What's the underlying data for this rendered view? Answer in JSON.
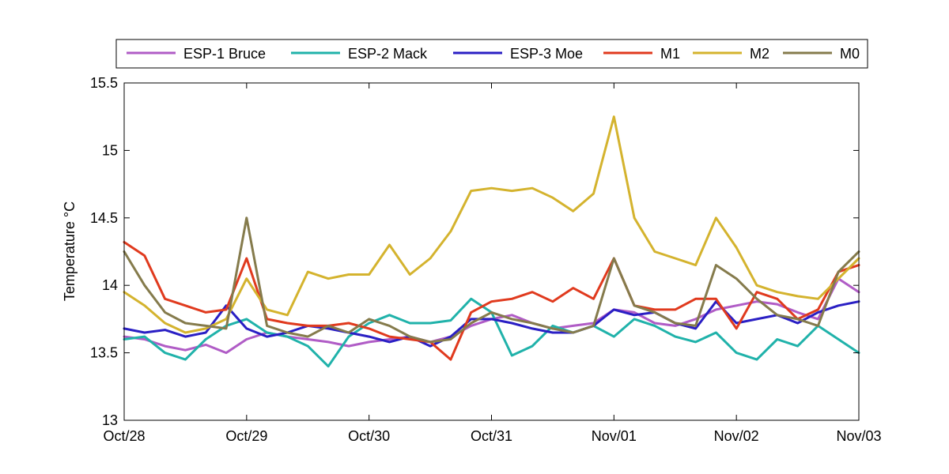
{
  "chart_data": {
    "type": "line",
    "title": "",
    "xlabel": "",
    "ylabel": "Temperature °C",
    "xlim": [
      "2014-10-28",
      "2014-11-03"
    ],
    "ylim": [
      13,
      15.5
    ],
    "x_ticks": [
      "Oct/28",
      "Oct/29",
      "Oct/30",
      "Oct/31",
      "Nov/01",
      "Nov/02",
      "Nov/03"
    ],
    "y_ticks": [
      "13",
      "13.5",
      "14",
      "14.5",
      "15",
      "15.5"
    ],
    "grid": false,
    "legend_position": "top",
    "series": [
      {
        "name": "ESP-1 Bruce",
        "color": "#b05cc6",
        "x": [
          "2014-10-28 00:00",
          "2014-10-28 04:00",
          "2014-10-28 08:00",
          "2014-10-28 12:00",
          "2014-10-28 16:00",
          "2014-10-28 20:00",
          "2014-10-29 00:00",
          "2014-10-29 04:00",
          "2014-10-29 08:00",
          "2014-10-29 12:00",
          "2014-10-29 16:00",
          "2014-10-29 20:00",
          "2014-10-30 00:00",
          "2014-10-30 04:00",
          "2014-10-30 08:00",
          "2014-10-30 12:00",
          "2014-10-30 16:00",
          "2014-10-30 20:00",
          "2014-10-31 00:00",
          "2014-10-31 04:00",
          "2014-10-31 08:00",
          "2014-10-31 12:00",
          "2014-10-31 16:00",
          "2014-10-31 20:00",
          "2014-11-01 00:00",
          "2014-11-01 04:00",
          "2014-11-01 08:00",
          "2014-11-01 12:00",
          "2014-11-01 16:00",
          "2014-11-01 20:00",
          "2014-11-02 00:00",
          "2014-11-02 04:00",
          "2014-11-02 08:00",
          "2014-11-02 12:00",
          "2014-11-02 16:00",
          "2014-11-02 20:00",
          "2014-11-03 00:00"
        ],
        "y": [
          13.62,
          13.6,
          13.55,
          13.52,
          13.56,
          13.5,
          13.6,
          13.65,
          13.62,
          13.6,
          13.58,
          13.55,
          13.58,
          13.6,
          13.62,
          13.58,
          13.62,
          13.7,
          13.75,
          13.78,
          13.72,
          13.68,
          13.7,
          13.72,
          13.82,
          13.8,
          13.72,
          13.7,
          13.75,
          13.82,
          13.85,
          13.88,
          13.86,
          13.8,
          13.75,
          14.05,
          13.95
        ]
      },
      {
        "name": "ESP-2 Mack",
        "color": "#20b2aa",
        "x": [
          "2014-10-28 00:00",
          "2014-10-28 04:00",
          "2014-10-28 08:00",
          "2014-10-28 12:00",
          "2014-10-28 16:00",
          "2014-10-28 20:00",
          "2014-10-29 00:00",
          "2014-10-29 04:00",
          "2014-10-29 08:00",
          "2014-10-29 12:00",
          "2014-10-29 16:00",
          "2014-10-29 20:00",
          "2014-10-30 00:00",
          "2014-10-30 04:00",
          "2014-10-30 08:00",
          "2014-10-30 12:00",
          "2014-10-30 16:00",
          "2014-10-30 20:00",
          "2014-10-31 00:00",
          "2014-10-31 04:00",
          "2014-10-31 08:00",
          "2014-10-31 12:00",
          "2014-10-31 16:00",
          "2014-10-31 20:00",
          "2014-11-01 00:00",
          "2014-11-01 04:00",
          "2014-11-01 08:00",
          "2014-11-01 12:00",
          "2014-11-01 16:00",
          "2014-11-01 20:00",
          "2014-11-02 00:00",
          "2014-11-02 04:00",
          "2014-11-02 08:00",
          "2014-11-02 12:00",
          "2014-11-02 16:00",
          "2014-11-02 20:00",
          "2014-11-03 00:00"
        ],
        "y": [
          13.6,
          13.62,
          13.5,
          13.45,
          13.6,
          13.7,
          13.75,
          13.65,
          13.62,
          13.55,
          13.4,
          13.62,
          13.72,
          13.78,
          13.72,
          13.72,
          13.74,
          13.9,
          13.8,
          13.48,
          13.55,
          13.7,
          13.65,
          13.7,
          13.62,
          13.75,
          13.7,
          13.62,
          13.58,
          13.65,
          13.5,
          13.45,
          13.6,
          13.55,
          13.7,
          13.6,
          13.5
        ]
      },
      {
        "name": "ESP-3 Moe",
        "color": "#2a1fc4",
        "x": [
          "2014-10-28 00:00",
          "2014-10-28 04:00",
          "2014-10-28 08:00",
          "2014-10-28 12:00",
          "2014-10-28 16:00",
          "2014-10-28 20:00",
          "2014-10-29 00:00",
          "2014-10-29 04:00",
          "2014-10-29 08:00",
          "2014-10-29 12:00",
          "2014-10-29 16:00",
          "2014-10-29 20:00",
          "2014-10-30 00:00",
          "2014-10-30 04:00",
          "2014-10-30 08:00",
          "2014-10-30 12:00",
          "2014-10-30 16:00",
          "2014-10-30 20:00",
          "2014-10-31 00:00",
          "2014-10-31 04:00",
          "2014-10-31 08:00",
          "2014-10-31 12:00",
          "2014-10-31 16:00",
          "2014-10-31 20:00",
          "2014-11-01 00:00",
          "2014-11-01 04:00",
          "2014-11-01 08:00",
          "2014-11-01 12:00",
          "2014-11-01 16:00",
          "2014-11-01 20:00",
          "2014-11-02 00:00",
          "2014-11-02 04:00",
          "2014-11-02 08:00",
          "2014-11-02 12:00",
          "2014-11-02 16:00",
          "2014-11-02 20:00",
          "2014-11-03 00:00"
        ],
        "y": [
          13.68,
          13.65,
          13.67,
          13.62,
          13.65,
          13.85,
          13.68,
          13.62,
          13.65,
          13.7,
          13.68,
          13.65,
          13.62,
          13.58,
          13.62,
          13.55,
          13.62,
          13.75,
          13.75,
          13.72,
          13.68,
          13.65,
          13.65,
          13.7,
          13.82,
          13.78,
          13.8,
          13.72,
          13.68,
          13.88,
          13.72,
          13.75,
          13.78,
          13.72,
          13.8,
          13.85,
          13.88
        ]
      },
      {
        "name": "M1",
        "color": "#e03a1e",
        "x": [
          "2014-10-28 00:00",
          "2014-10-28 04:00",
          "2014-10-28 08:00",
          "2014-10-28 12:00",
          "2014-10-28 16:00",
          "2014-10-28 20:00",
          "2014-10-29 00:00",
          "2014-10-29 04:00",
          "2014-10-29 08:00",
          "2014-10-29 12:00",
          "2014-10-29 16:00",
          "2014-10-29 20:00",
          "2014-10-30 00:00",
          "2014-10-30 04:00",
          "2014-10-30 08:00",
          "2014-10-30 12:00",
          "2014-10-30 16:00",
          "2014-10-30 20:00",
          "2014-10-31 00:00",
          "2014-10-31 04:00",
          "2014-10-31 08:00",
          "2014-10-31 12:00",
          "2014-10-31 16:00",
          "2014-10-31 20:00",
          "2014-11-01 00:00",
          "2014-11-01 04:00",
          "2014-11-01 08:00",
          "2014-11-01 12:00",
          "2014-11-01 16:00",
          "2014-11-01 20:00",
          "2014-11-02 00:00",
          "2014-11-02 04:00",
          "2014-11-02 08:00",
          "2014-11-02 12:00",
          "2014-11-02 16:00",
          "2014-11-02 20:00",
          "2014-11-03 00:00"
        ],
        "y": [
          14.32,
          14.22,
          13.9,
          13.85,
          13.8,
          13.82,
          14.2,
          13.75,
          13.72,
          13.7,
          13.7,
          13.72,
          13.68,
          13.62,
          13.6,
          13.58,
          13.45,
          13.8,
          13.88,
          13.9,
          13.95,
          13.88,
          13.98,
          13.9,
          14.2,
          13.85,
          13.82,
          13.82,
          13.9,
          13.9,
          13.68,
          13.95,
          13.9,
          13.75,
          13.82,
          14.1,
          14.15
        ]
      },
      {
        "name": "M2",
        "color": "#d4b32e",
        "x": [
          "2014-10-28 00:00",
          "2014-10-28 04:00",
          "2014-10-28 08:00",
          "2014-10-28 12:00",
          "2014-10-28 16:00",
          "2014-10-28 20:00",
          "2014-10-29 00:00",
          "2014-10-29 04:00",
          "2014-10-29 08:00",
          "2014-10-29 12:00",
          "2014-10-29 16:00",
          "2014-10-29 20:00",
          "2014-10-30 00:00",
          "2014-10-30 04:00",
          "2014-10-30 08:00",
          "2014-10-30 12:00",
          "2014-10-30 16:00",
          "2014-10-30 20:00",
          "2014-10-31 00:00",
          "2014-10-31 04:00",
          "2014-10-31 08:00",
          "2014-10-31 12:00",
          "2014-10-31 16:00",
          "2014-10-31 20:00",
          "2014-11-01 00:00",
          "2014-11-01 04:00",
          "2014-11-01 08:00",
          "2014-11-01 12:00",
          "2014-11-01 16:00",
          "2014-11-01 20:00",
          "2014-11-02 00:00",
          "2014-11-02 04:00",
          "2014-11-02 08:00",
          "2014-11-02 12:00",
          "2014-11-02 16:00",
          "2014-11-02 20:00",
          "2014-11-03 00:00"
        ],
        "y": [
          13.95,
          13.85,
          13.72,
          13.65,
          13.68,
          13.75,
          14.05,
          13.82,
          13.78,
          14.1,
          14.05,
          14.08,
          14.08,
          14.3,
          14.08,
          14.2,
          14.4,
          14.7,
          14.72,
          14.7,
          14.72,
          14.65,
          14.55,
          14.68,
          15.25,
          14.5,
          14.25,
          14.2,
          14.15,
          14.5,
          14.28,
          14.0,
          13.95,
          13.92,
          13.9,
          14.05,
          14.2
        ]
      },
      {
        "name": "M0",
        "color": "#857b4c",
        "x": [
          "2014-10-28 00:00",
          "2014-10-28 04:00",
          "2014-10-28 08:00",
          "2014-10-28 12:00",
          "2014-10-28 16:00",
          "2014-10-28 20:00",
          "2014-10-29 00:00",
          "2014-10-29 04:00",
          "2014-10-29 08:00",
          "2014-10-29 12:00",
          "2014-10-29 16:00",
          "2014-10-29 20:00",
          "2014-10-30 00:00",
          "2014-10-30 04:00",
          "2014-10-30 08:00",
          "2014-10-30 12:00",
          "2014-10-30 16:00",
          "2014-10-30 20:00",
          "2014-10-31 00:00",
          "2014-10-31 04:00",
          "2014-10-31 08:00",
          "2014-10-31 12:00",
          "2014-10-31 16:00",
          "2014-10-31 20:00",
          "2014-11-01 00:00",
          "2014-11-01 04:00",
          "2014-11-01 08:00",
          "2014-11-01 12:00",
          "2014-11-01 16:00",
          "2014-11-01 20:00",
          "2014-11-02 00:00",
          "2014-11-02 04:00",
          "2014-11-02 08:00",
          "2014-11-02 12:00",
          "2014-11-02 16:00",
          "2014-11-02 20:00",
          "2014-11-03 00:00"
        ],
        "y": [
          14.25,
          14.0,
          13.8,
          13.72,
          13.7,
          13.68,
          14.5,
          13.7,
          13.65,
          13.62,
          13.7,
          13.65,
          13.75,
          13.7,
          13.62,
          13.58,
          13.6,
          13.72,
          13.8,
          13.75,
          13.72,
          13.68,
          13.65,
          13.7,
          14.2,
          13.85,
          13.8,
          13.72,
          13.7,
          14.15,
          14.05,
          13.9,
          13.78,
          13.75,
          13.7,
          14.1,
          14.25
        ]
      }
    ]
  }
}
